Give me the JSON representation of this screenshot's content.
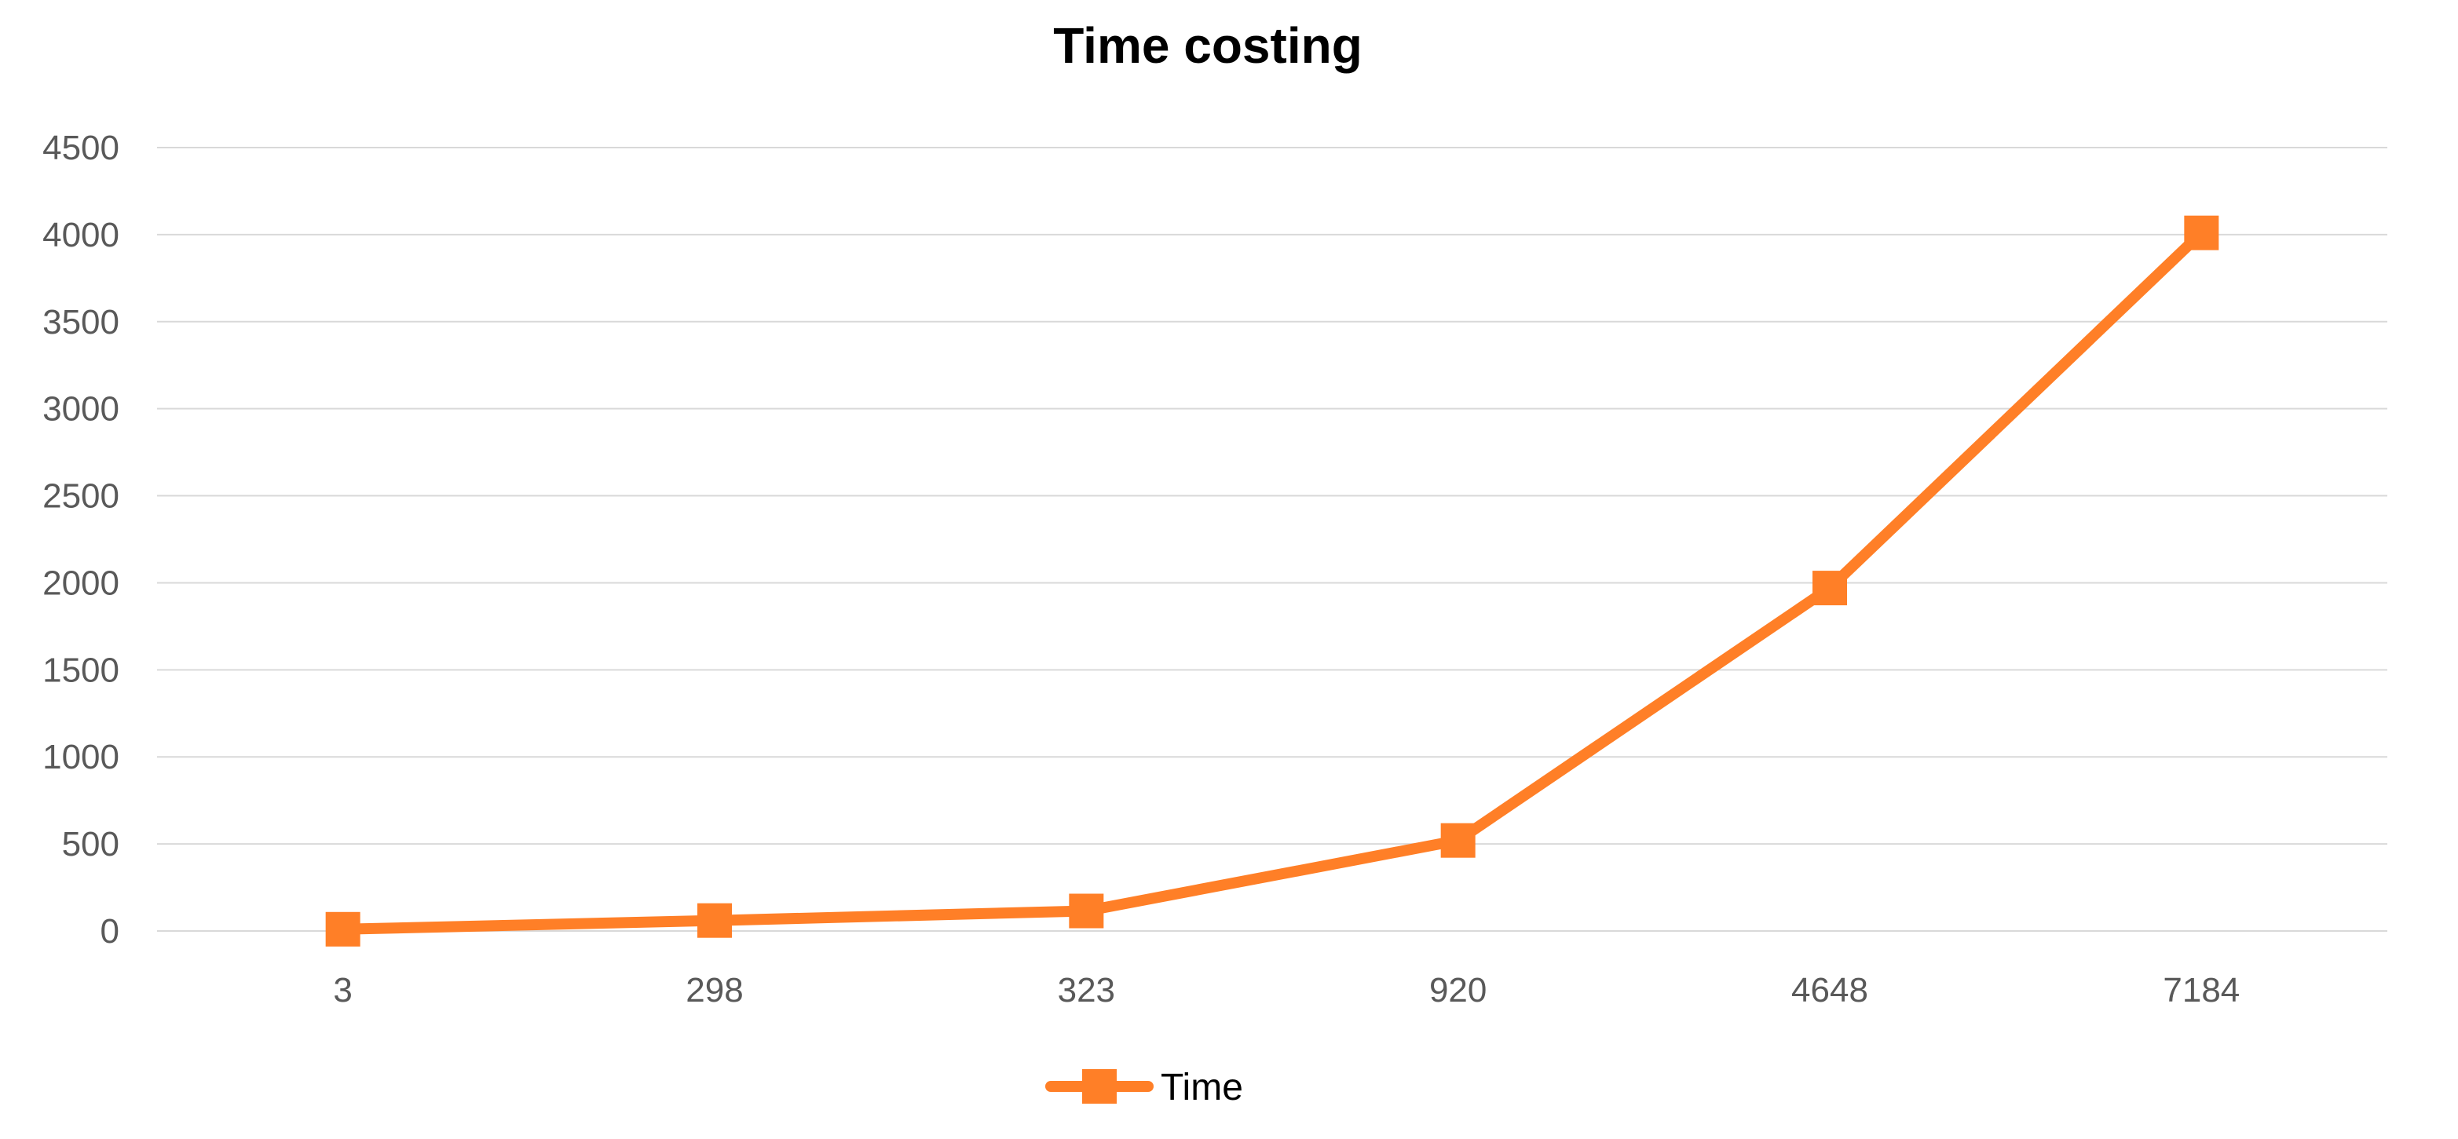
{
  "colors": {
    "series": "#ff7f27",
    "grid": "#d9d9d9",
    "tick_text": "#595959"
  },
  "chart_data": {
    "type": "line",
    "title": "Time costing",
    "xlabel": "",
    "ylabel": "",
    "categories": [
      "3",
      "298",
      "323",
      "920",
      "4648",
      "7184"
    ],
    "series": [
      {
        "name": "Time",
        "values": [
          10,
          60,
          115,
          520,
          1970,
          4010
        ],
        "marker": "square"
      }
    ],
    "ylim": [
      0,
      4500
    ],
    "yticks": [
      0,
      500,
      1000,
      1500,
      2000,
      2500,
      3000,
      3500,
      4000,
      4500
    ],
    "grid": true,
    "legend": "bottom-center"
  }
}
